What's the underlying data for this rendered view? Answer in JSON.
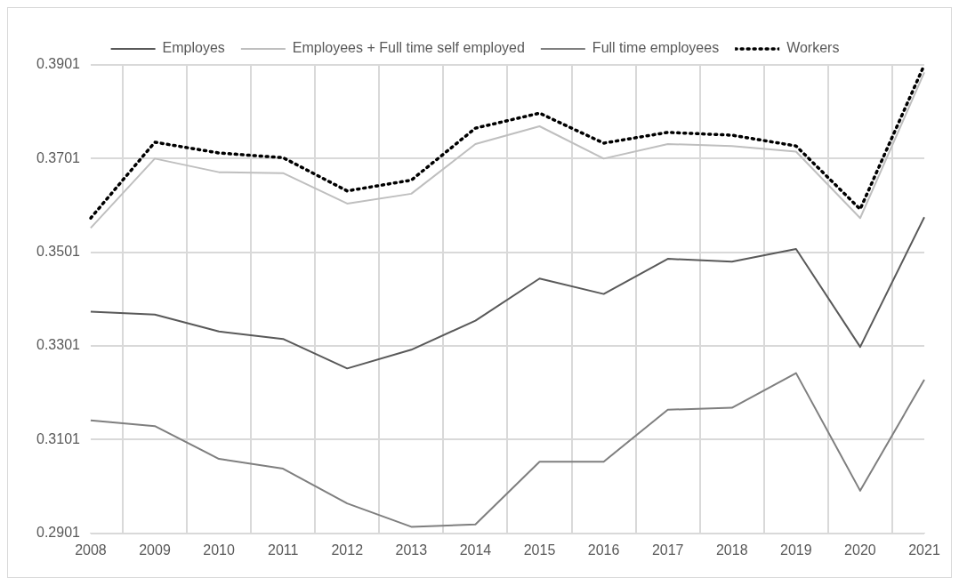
{
  "chart_data": {
    "type": "line",
    "categories": [
      "2008",
      "2009",
      "2010",
      "2011",
      "2012",
      "2013",
      "2014",
      "2015",
      "2016",
      "2017",
      "2018",
      "2019",
      "2020",
      "2021"
    ],
    "series": [
      {
        "name": "Employes",
        "color": "#595959",
        "values": [
          0.3374,
          0.3368,
          0.3332,
          0.3316,
          0.3253,
          0.3293,
          0.3355,
          0.3445,
          0.3412,
          0.3487,
          0.3481,
          0.3508,
          0.3299,
          0.3576
        ]
      },
      {
        "name": "Employees + Full time self employed",
        "color": "#bfbfbf",
        "values": [
          0.3553,
          0.3701,
          0.3672,
          0.367,
          0.3605,
          0.3626,
          0.3732,
          0.377,
          0.3701,
          0.3732,
          0.3728,
          0.3716,
          0.3574,
          0.3885
        ]
      },
      {
        "name": "Full time employees",
        "color": "#7f7f7f",
        "values": [
          0.3142,
          0.313,
          0.306,
          0.3039,
          0.2965,
          0.2915,
          0.292,
          0.3054,
          0.3054,
          0.3165,
          0.3169,
          0.3243,
          0.2992,
          0.3229
        ]
      },
      {
        "name": "Workers",
        "color": "#000000",
        "line_style": "dotted",
        "values": [
          0.3574,
          0.3736,
          0.3713,
          0.3703,
          0.3632,
          0.3655,
          0.3766,
          0.3798,
          0.3734,
          0.3757,
          0.3751,
          0.3728,
          0.3593,
          0.3901
        ]
      }
    ],
    "ylim": [
      0.2901,
      0.3901
    ],
    "yticks": [
      0.2901,
      0.3101,
      0.3301,
      0.3501,
      0.3701,
      0.3901
    ],
    "grid": true,
    "legend": "top",
    "marker": "none"
  }
}
